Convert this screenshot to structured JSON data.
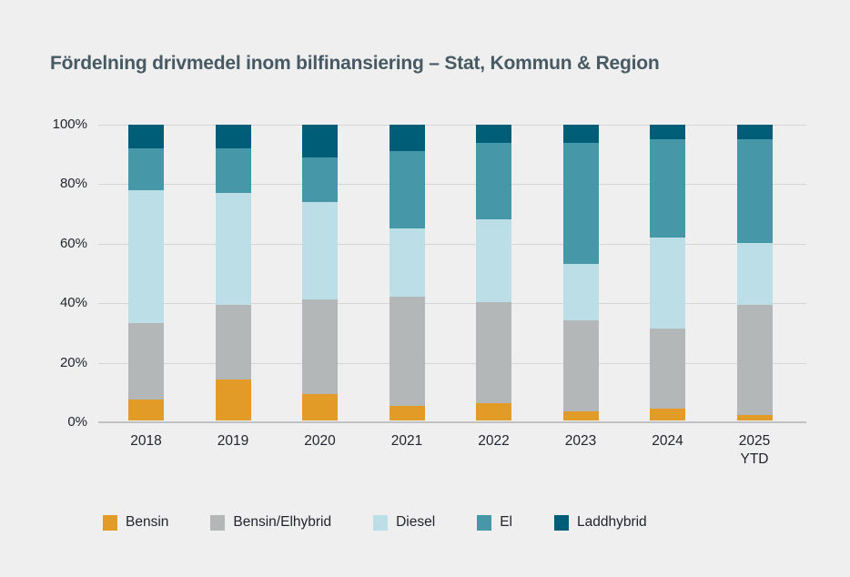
{
  "title": "Fördelning drivmedel inom bilfinansiering – Stat, Kommun & Region",
  "colors": {
    "background": "#efefef",
    "title_text": "#475a63",
    "axis_text": "#22252d",
    "gridline": "#d5d5d8",
    "axis_line": "#c0c1c4"
  },
  "chart_data": {
    "type": "bar",
    "subtype": "stacked-100-percent",
    "title": "Fördelning drivmedel inom bilfinansiering – Stat, Kommun & Region",
    "categories": [
      "2018",
      "2019",
      "2020",
      "2021",
      "2022",
      "2023",
      "2024",
      "2025 YTD"
    ],
    "category_labels": [
      [
        "2018"
      ],
      [
        "2019"
      ],
      [
        "2020"
      ],
      [
        "2021"
      ],
      [
        "2022"
      ],
      [
        "2023"
      ],
      [
        "2024"
      ],
      [
        "2025",
        "YTD"
      ]
    ],
    "series": [
      {
        "name": "Bensin",
        "color": "#e19b26",
        "values": [
          7,
          14,
          9,
          5,
          6,
          3,
          4,
          2
        ]
      },
      {
        "name": "Bensin/Elhybrid",
        "color": "#b4b7b8",
        "values": [
          26,
          25,
          32,
          37,
          34,
          31,
          27,
          37
        ]
      },
      {
        "name": "Diesel",
        "color": "#bcdfe7",
        "values": [
          45,
          38,
          33,
          23,
          28,
          19,
          31,
          21
        ]
      },
      {
        "name": "El",
        "color": "#4697a7",
        "values": [
          14,
          15,
          15,
          26,
          26,
          41,
          33,
          35
        ]
      },
      {
        "name": "Laddhybrid",
        "color": "#005d78",
        "values": [
          8,
          8,
          11,
          9,
          6,
          6,
          5,
          5
        ]
      }
    ],
    "xlabel": "",
    "ylabel": "",
    "ylim": [
      0,
      100
    ],
    "yticks": [
      0,
      20,
      40,
      60,
      80,
      100
    ],
    "ytick_labels": [
      "0%",
      "20%",
      "40%",
      "60%",
      "80%",
      "100%"
    ],
    "grid": true,
    "legend_position": "bottom"
  }
}
